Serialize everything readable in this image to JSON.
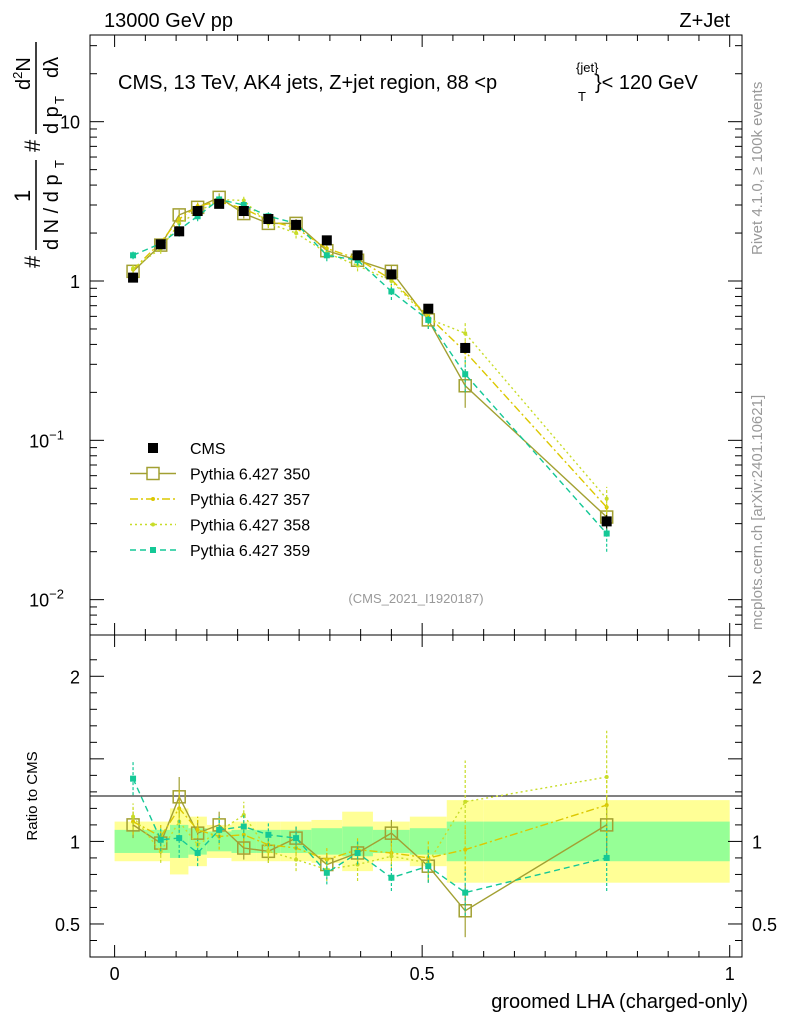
{
  "header": {
    "left": "13000 GeV pp",
    "right": "Z+Jet"
  },
  "side": {
    "rivet": "Rivet 4.1.0, ≥ 100k events",
    "mcplots": "mcplots.cern.ch [arXiv:2401.10621]"
  },
  "main": {
    "title": "CMS, 13 TeV, AK4 jets, Z+jet region, 88 <",
    "title_pt": "p",
    "title_pt_sub": "T",
    "title_pt_sup": "{jet}",
    "title_tail": "}< 120 GeV",
    "analysis": "(CMS_2021_I1920187)",
    "ylabel": {
      "hash1": "#",
      "one": "1",
      "dN": "d N / d p",
      "dN_sub": "T",
      "hash2": "#",
      "d2N": "d",
      "d2N_sup": "2",
      "d2N_n": "N",
      "dpt": "d p",
      "dpt_sub": "T",
      "dlam": "dλ"
    }
  },
  "ratio": {
    "ylabel": "Ratio to CMS"
  },
  "xlabel": "groomed LHA (charged-only)",
  "colors": {
    "p350": "#a2a032",
    "p357": "#dcc800",
    "p358": "#c8dc28",
    "p359": "#14c896",
    "band_yellow": "#ffff96",
    "band_green": "#96ff96"
  },
  "chart_data": {
    "type": "scatter",
    "x_edges": [
      0,
      0.06,
      0.09,
      0.12,
      0.15,
      0.19,
      0.23,
      0.27,
      0.32,
      0.37,
      0.42,
      0.48,
      0.54,
      0.6,
      1.0
    ],
    "x": [
      0.03,
      0.075,
      0.105,
      0.135,
      0.17,
      0.21,
      0.25,
      0.295,
      0.345,
      0.395,
      0.45,
      0.51,
      0.57,
      0.8
    ],
    "xlim": [
      -0.04,
      1.02
    ],
    "main": {
      "yscale": "log",
      "ylim": [
        0.006,
        35
      ],
      "yticks": [
        {
          "v": 0.01,
          "base": "10",
          "exp": "−2"
        },
        {
          "v": 0.1,
          "base": "10",
          "exp": "−1"
        },
        {
          "v": 1,
          "base": "1",
          "exp": ""
        },
        {
          "v": 10,
          "base": "10",
          "exp": ""
        }
      ],
      "series": [
        {
          "name": "CMS",
          "legend": "CMS",
          "style": "data",
          "values": [
            1.05,
            1.7,
            2.05,
            2.75,
            3.05,
            2.75,
            2.45,
            2.25,
            1.8,
            1.45,
            1.1,
            0.67,
            0.38,
            0.031
          ],
          "err": [
            0.05,
            0.06,
            0.07,
            0.08,
            0.08,
            0.08,
            0.07,
            0.07,
            0.06,
            0.05,
            0.05,
            0.03,
            0.02,
            0.003
          ]
        },
        {
          "name": "p350",
          "legend": "Pythia 6.427 350",
          "style": "open-square",
          "values": [
            1.15,
            1.68,
            2.6,
            2.9,
            3.35,
            2.65,
            2.3,
            2.3,
            1.55,
            1.35,
            1.15,
            0.57,
            0.22,
            0.033
          ],
          "err": [
            0.08,
            0.12,
            0.2,
            0.18,
            0.2,
            0.18,
            0.15,
            0.15,
            0.12,
            0.1,
            0.1,
            0.07,
            0.06,
            0.006
          ]
        },
        {
          "name": "p357",
          "legend": "Pythia 6.427 357",
          "style": "dashdot",
          "values": [
            1.18,
            1.75,
            2.45,
            2.95,
            3.15,
            2.85,
            2.4,
            2.15,
            1.6,
            1.38,
            1.02,
            0.6,
            0.36,
            0.038
          ],
          "err": [
            0.08,
            0.12,
            0.2,
            0.18,
            0.2,
            0.18,
            0.15,
            0.15,
            0.12,
            0.1,
            0.1,
            0.07,
            0.06,
            0.007
          ]
        },
        {
          "name": "p358",
          "legend": "Pythia 6.427 358",
          "style": "dotted",
          "values": [
            1.2,
            1.6,
            2.3,
            2.7,
            3.25,
            3.2,
            2.3,
            2.0,
            1.5,
            1.25,
            1.0,
            0.58,
            0.47,
            0.043
          ],
          "err": [
            0.08,
            0.12,
            0.2,
            0.18,
            0.2,
            0.18,
            0.15,
            0.15,
            0.12,
            0.1,
            0.1,
            0.07,
            0.08,
            0.008
          ]
        },
        {
          "name": "p359",
          "legend": "Pythia 6.427 359",
          "style": "dashed",
          "values": [
            1.45,
            1.72,
            2.1,
            2.55,
            3.25,
            3.0,
            2.55,
            2.3,
            1.45,
            1.35,
            0.86,
            0.57,
            0.26,
            0.026
          ],
          "err": [
            0.08,
            0.12,
            0.2,
            0.18,
            0.2,
            0.18,
            0.15,
            0.15,
            0.12,
            0.1,
            0.1,
            0.07,
            0.06,
            0.006
          ]
        }
      ]
    },
    "ratio": {
      "ylim": [
        0.3,
        2.25
      ],
      "yticks": [
        0.5,
        1,
        2
      ],
      "band_yellow": [
        0.12,
        0.12,
        0.2,
        0.15,
        0.1,
        0.12,
        0.12,
        0.12,
        0.13,
        0.18,
        0.12,
        0.15,
        0.25,
        0.25
      ],
      "band_green": [
        0.07,
        0.07,
        0.1,
        0.08,
        0.06,
        0.07,
        0.07,
        0.07,
        0.08,
        0.09,
        0.07,
        0.08,
        0.12,
        0.12
      ],
      "series": [
        {
          "name": "p350",
          "values": [
            1.1,
            0.99,
            1.27,
            1.05,
            1.1,
            0.96,
            0.94,
            1.02,
            0.86,
            0.93,
            1.05,
            0.85,
            0.58,
            1.1
          ],
          "err": [
            0.08,
            0.07,
            0.12,
            0.08,
            0.08,
            0.07,
            0.07,
            0.07,
            0.07,
            0.07,
            0.08,
            0.1,
            0.16,
            0.18
          ]
        },
        {
          "name": "p357",
          "values": [
            1.12,
            1.03,
            1.2,
            1.07,
            1.03,
            1.04,
            0.98,
            0.96,
            0.89,
            0.95,
            0.93,
            0.9,
            0.95,
            1.22
          ],
          "err": [
            0.08,
            0.07,
            0.12,
            0.08,
            0.08,
            0.07,
            0.07,
            0.07,
            0.07,
            0.07,
            0.08,
            0.1,
            0.15,
            0.2
          ]
        },
        {
          "name": "p358",
          "values": [
            1.15,
            0.94,
            1.12,
            0.98,
            1.06,
            1.16,
            0.94,
            0.89,
            0.83,
            0.86,
            0.91,
            0.87,
            1.24,
            1.39
          ],
          "err": [
            0.08,
            0.07,
            0.12,
            0.08,
            0.08,
            0.08,
            0.07,
            0.07,
            0.07,
            0.1,
            0.08,
            0.1,
            0.25,
            0.28
          ]
        },
        {
          "name": "p359",
          "values": [
            1.38,
            1.01,
            1.02,
            0.93,
            1.07,
            1.09,
            1.04,
            1.02,
            0.81,
            0.93,
            0.78,
            0.85,
            0.69,
            0.9
          ],
          "err": [
            0.1,
            0.07,
            0.12,
            0.08,
            0.08,
            0.07,
            0.07,
            0.07,
            0.07,
            0.07,
            0.08,
            0.1,
            0.14,
            0.2
          ]
        }
      ]
    },
    "xticks": [
      {
        "v": 0,
        "label": "0"
      },
      {
        "v": 0.5,
        "label": "0.5"
      },
      {
        "v": 1,
        "label": "1"
      }
    ]
  }
}
